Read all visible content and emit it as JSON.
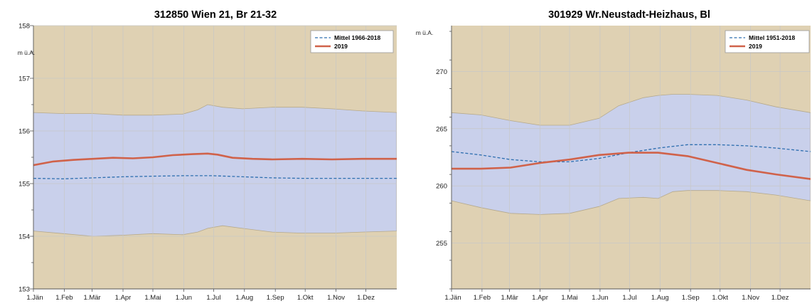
{
  "chart_data": [
    {
      "type": "area",
      "title": "312850 Wien 21, Br 21-32",
      "ylabel": "m ü.A.",
      "ylim": [
        153,
        158
      ],
      "yticks": [
        153,
        154,
        155,
        156,
        157,
        158
      ],
      "x_labels": [
        "1.Jän",
        "1.Feb",
        "1.Mär",
        "1.Apr",
        "1.Mai",
        "1.Jun",
        "1.Jul",
        "1.Aug",
        "1.Sep",
        "1.Okt",
        "1.Nov",
        "1.Dez"
      ],
      "x_day_of_year": [
        0,
        31,
        59,
        90,
        120,
        151,
        181,
        212,
        243,
        273,
        304,
        334
      ],
      "grid": true,
      "legend_position": "top-right",
      "colors": {
        "background": "#dfd1b3",
        "band": "#c9d0eb",
        "mean": "#2f6fb0",
        "year": "#d0624a",
        "grid": "#c7c7c7"
      },
      "series": [
        {
          "name": "Mittel 1966-2018",
          "style": "dashed",
          "x": [
            0,
            30,
            60,
            90,
            120,
            150,
            180,
            210,
            240,
            270,
            300,
            330,
            365
          ],
          "y": [
            155.1,
            155.09,
            155.11,
            155.13,
            155.14,
            155.15,
            155.15,
            155.13,
            155.11,
            155.1,
            155.1,
            155.1,
            155.1
          ]
        },
        {
          "name": "2019",
          "style": "solid",
          "x": [
            0,
            20,
            40,
            60,
            80,
            100,
            120,
            140,
            160,
            175,
            185,
            200,
            220,
            240,
            270,
            300,
            330,
            365
          ],
          "y": [
            155.35,
            155.42,
            155.45,
            155.47,
            155.49,
            155.48,
            155.5,
            155.54,
            155.56,
            155.57,
            155.55,
            155.49,
            155.47,
            155.46,
            155.47,
            155.46,
            155.47,
            155.47
          ]
        }
      ],
      "band": {
        "label": "",
        "x": [
          0,
          30,
          60,
          90,
          120,
          150,
          165,
          175,
          190,
          210,
          240,
          270,
          300,
          330,
          365
        ],
        "lower": [
          154.1,
          154.05,
          154.0,
          154.02,
          154.05,
          154.03,
          154.08,
          154.15,
          154.2,
          154.15,
          154.08,
          154.06,
          154.06,
          154.08,
          154.1
        ],
        "upper": [
          156.35,
          156.33,
          156.33,
          156.3,
          156.3,
          156.32,
          156.4,
          156.5,
          156.45,
          156.42,
          156.45,
          156.45,
          156.42,
          156.38,
          156.35
        ]
      }
    },
    {
      "type": "area",
      "title": "301929 Wr.Neustadt-Heizhaus, Bl",
      "ylabel": "m ü.A.",
      "ylim": [
        251,
        274
      ],
      "yticks": [
        255,
        260,
        265,
        270
      ],
      "x_labels": [
        "1.Jän",
        "1.Feb",
        "1.Mär",
        "1.Apr",
        "1.Mai",
        "1.Jun",
        "1.Jul",
        "1.Aug",
        "1.Sep",
        "1.Okt",
        "1.Nov",
        "1.Dez"
      ],
      "x_day_of_year": [
        0,
        31,
        59,
        90,
        120,
        151,
        181,
        212,
        243,
        273,
        304,
        334
      ],
      "grid": true,
      "legend_position": "top-right",
      "colors": {
        "background": "#dfd1b3",
        "band": "#c9d0eb",
        "mean": "#2f6fb0",
        "year": "#d0624a",
        "grid": "#c7c7c7"
      },
      "series": [
        {
          "name": "Mittel 1951-2018",
          "style": "dashed",
          "x": [
            0,
            30,
            60,
            90,
            120,
            150,
            180,
            210,
            240,
            270,
            300,
            330,
            365
          ],
          "y": [
            263.0,
            262.7,
            262.3,
            262.1,
            262.1,
            262.4,
            262.9,
            263.3,
            263.6,
            263.6,
            263.5,
            263.3,
            263.0
          ]
        },
        {
          "name": "2019",
          "style": "solid",
          "x": [
            0,
            30,
            60,
            90,
            120,
            150,
            180,
            210,
            240,
            270,
            300,
            330,
            365
          ],
          "y": [
            261.5,
            261.5,
            261.6,
            262.0,
            262.3,
            262.7,
            262.9,
            262.9,
            262.6,
            262.0,
            261.4,
            261.0,
            260.6
          ]
        }
      ],
      "band": {
        "label": "",
        "x": [
          0,
          30,
          60,
          90,
          120,
          150,
          170,
          195,
          210,
          225,
          240,
          270,
          300,
          330,
          365
        ],
        "lower": [
          258.7,
          258.1,
          257.6,
          257.5,
          257.6,
          258.2,
          258.9,
          259.0,
          258.9,
          259.5,
          259.6,
          259.6,
          259.5,
          259.2,
          258.7
        ],
        "upper": [
          266.4,
          266.2,
          265.7,
          265.3,
          265.3,
          265.9,
          267.0,
          267.7,
          267.9,
          268.0,
          268.0,
          267.9,
          267.5,
          266.9,
          266.4
        ]
      }
    }
  ]
}
